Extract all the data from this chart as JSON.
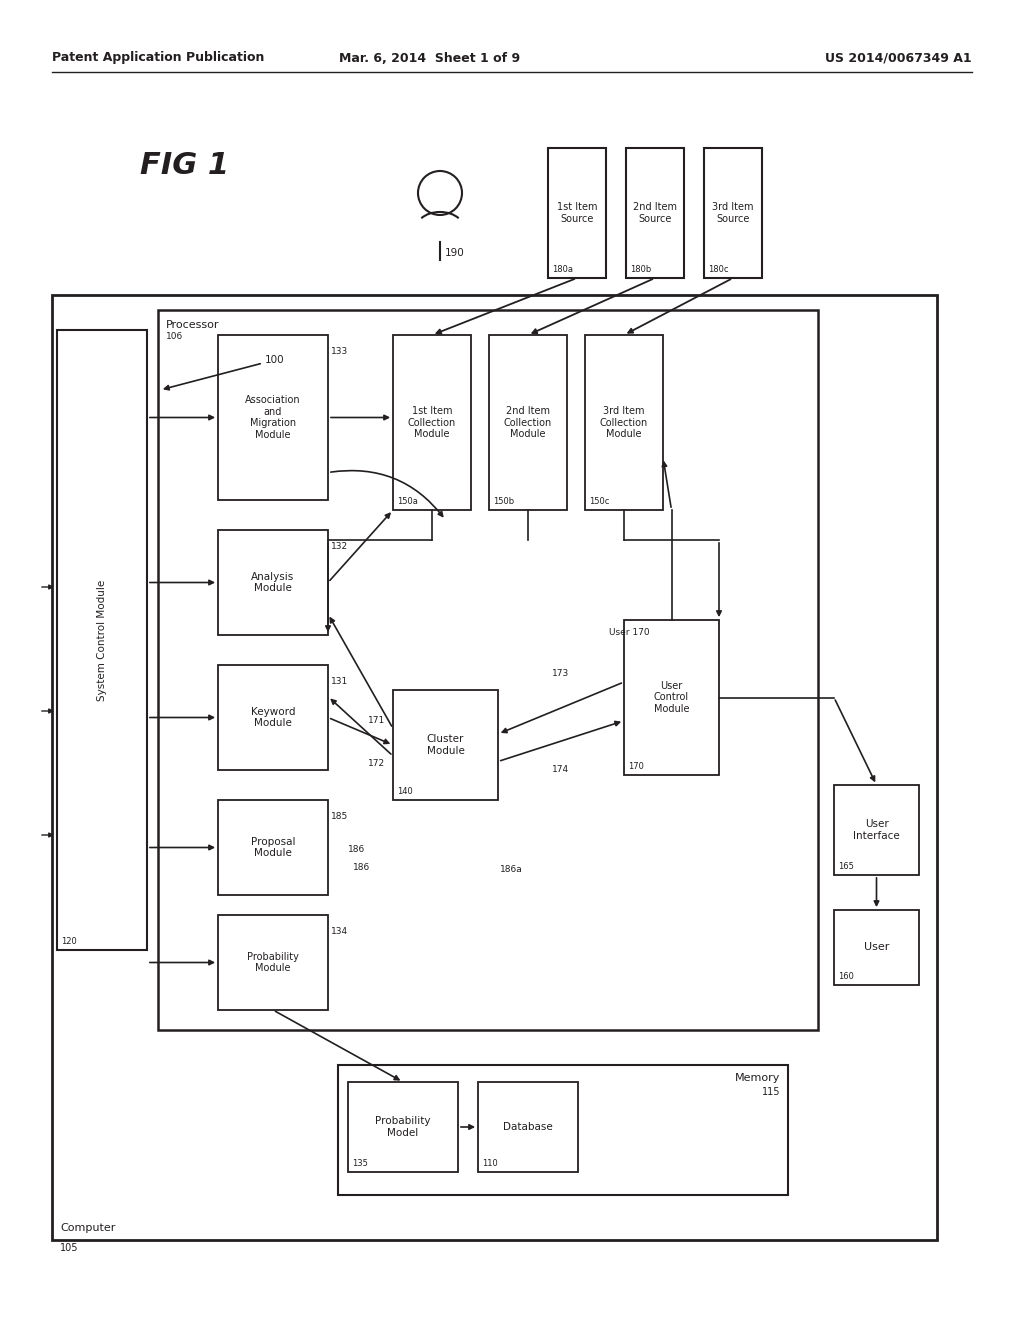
{
  "header_left": "Patent Application Publication",
  "header_mid": "Mar. 6, 2014  Sheet 1 of 9",
  "header_right": "US 2014/0067349 A1",
  "bg_color": "#ffffff",
  "line_color": "#231f20",
  "text_color": "#231f20"
}
